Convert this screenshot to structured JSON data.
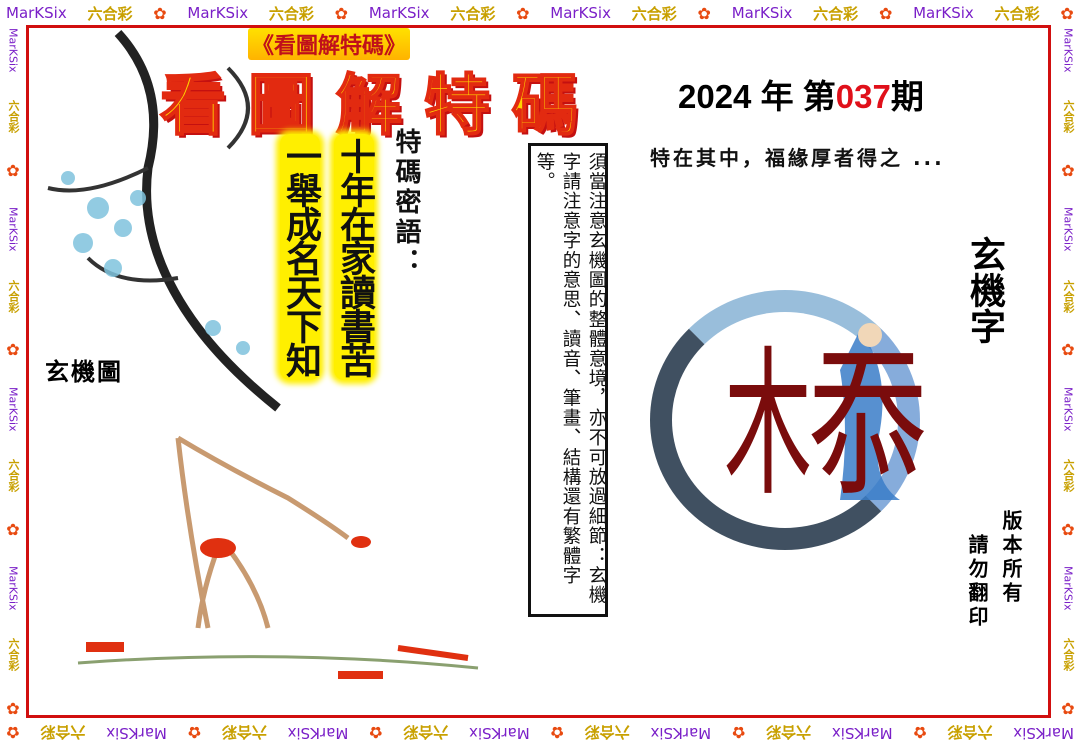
{
  "border": {
    "brand_en": "MarKSix",
    "brand_zh": "六合彩",
    "flower": "✿"
  },
  "header": {
    "subtitle": "《看圖解特碼》",
    "title": "看圖解特碼",
    "year": "2024",
    "year_unit": "年",
    "issue_prefix": "第",
    "issue_number": "037",
    "issue_suffix": "期"
  },
  "poem": {
    "line1": "十年在家讀書苦",
    "line2": "一舉成名天下知",
    "label": "特碼密語："
  },
  "map_label": "玄機圖",
  "instructions": {
    "col1": "須當注意玄機圖的整體意境，亦不可放過細節：玄機",
    "col2": "字請注意字的意思、讀音、筆畫、結構還有繁體字等。"
  },
  "hint": "特在其中，福緣厚者得之 ...",
  "char_label": "玄機字",
  "key_char_parts": [
    "木",
    "忝"
  ],
  "copyright": {
    "col1": "版本所有",
    "col2": "請勿翻印"
  },
  "colors": {
    "frame": "#d10f0f",
    "issue_number": "#e0101a",
    "key_char": "#7a0c0c",
    "highlight": "#ffef00"
  }
}
